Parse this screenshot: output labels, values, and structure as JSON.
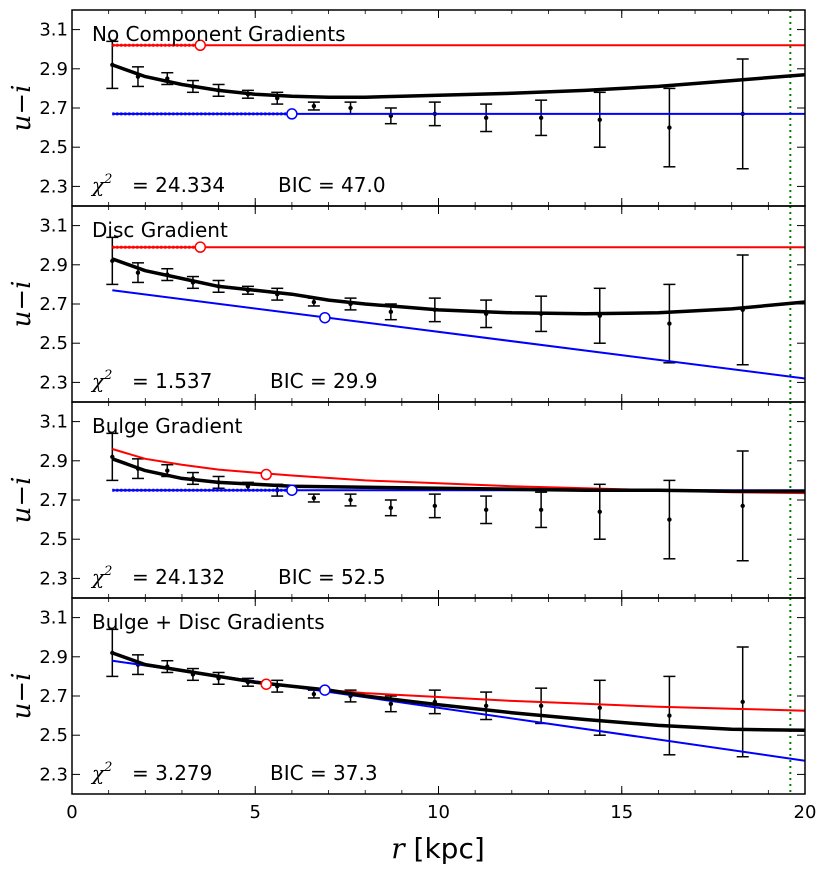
{
  "chart_data": {
    "type": "line",
    "xlabel": "r [kpc]",
    "xlabel_var": "r",
    "xlabel_unit": "[kpc]",
    "ylabel": "u−i",
    "xlim": [
      0,
      20
    ],
    "ylim": [
      2.2,
      3.2
    ],
    "xticks": [
      "0",
      "5",
      "10",
      "15",
      "20"
    ],
    "yticks": [
      "2.3",
      "2.5",
      "2.7",
      "2.9",
      "3.1"
    ],
    "vline_x": 19.6,
    "colors": {
      "bulge": "#ff0000",
      "disc": "#0000ff",
      "total": "#000000",
      "data": "#000000",
      "vline": "#008000"
    },
    "observations": {
      "r": [
        1.1,
        1.8,
        2.6,
        3.3,
        4.0,
        4.8,
        5.6,
        6.6,
        7.6,
        8.7,
        9.9,
        11.3,
        12.8,
        14.4,
        16.3,
        18.3
      ],
      "color": [
        2.92,
        2.86,
        2.85,
        2.81,
        2.79,
        2.77,
        2.75,
        2.71,
        2.7,
        2.66,
        2.67,
        2.65,
        2.65,
        2.64,
        2.6,
        2.67
      ],
      "err": [
        0.12,
        0.05,
        0.03,
        0.03,
        0.03,
        0.02,
        0.03,
        0.02,
        0.03,
        0.04,
        0.06,
        0.07,
        0.09,
        0.14,
        0.2,
        0.28
      ]
    },
    "panels": [
      {
        "title": "No Component Gradients",
        "chi2": "= 24.334",
        "bic": "BIC = 47.0",
        "bulge": {
          "x": [
            1.1,
            20
          ],
          "y": [
            3.02,
            3.02
          ]
        },
        "bulge_dotted": {
          "x": [
            1.1,
            3.5
          ],
          "y": [
            3.02,
            3.02
          ]
        },
        "bulge_marker": {
          "x": 3.5,
          "y": 3.02
        },
        "disc": {
          "x": [
            1.1,
            20
          ],
          "y": [
            2.67,
            2.67
          ]
        },
        "disc_dotted": {
          "x": [
            1.1,
            6.0
          ],
          "y": [
            2.67,
            2.67
          ]
        },
        "disc_marker": {
          "x": 6.0,
          "y": 2.67
        },
        "total": {
          "x": [
            1.1,
            2,
            3,
            4,
            5,
            6,
            7,
            8,
            9,
            10,
            12,
            14,
            16,
            18,
            20
          ],
          "y": [
            2.92,
            2.86,
            2.82,
            2.79,
            2.77,
            2.76,
            2.755,
            2.755,
            2.76,
            2.765,
            2.775,
            2.79,
            2.81,
            2.84,
            2.87
          ]
        }
      },
      {
        "title": "Disc Gradient",
        "chi2": "= 1.537",
        "bic": "BIC = 29.9",
        "bulge": {
          "x": [
            1.1,
            20
          ],
          "y": [
            2.99,
            2.99
          ]
        },
        "bulge_dotted": {
          "x": [
            1.1,
            3.5
          ],
          "y": [
            2.99,
            2.99
          ]
        },
        "bulge_marker": {
          "x": 3.5,
          "y": 2.99
        },
        "disc": {
          "x": [
            1.1,
            20
          ],
          "y": [
            2.77,
            2.32
          ]
        },
        "disc_marker": {
          "x": 6.9,
          "y": 2.63
        },
        "total": {
          "x": [
            1.1,
            2,
            3,
            4,
            5,
            6,
            7,
            8,
            9,
            10,
            12,
            14,
            16,
            18,
            20
          ],
          "y": [
            2.93,
            2.87,
            2.83,
            2.79,
            2.77,
            2.75,
            2.72,
            2.7,
            2.685,
            2.67,
            2.655,
            2.65,
            2.655,
            2.675,
            2.71
          ]
        }
      },
      {
        "title": "Bulge Gradient",
        "chi2": "= 24.132",
        "bic": "BIC = 52.5",
        "bulge": {
          "x": [
            1.1,
            2,
            3,
            4,
            5,
            6,
            8,
            10,
            12,
            14,
            16,
            18,
            20
          ],
          "y": [
            2.96,
            2.91,
            2.88,
            2.855,
            2.84,
            2.825,
            2.8,
            2.785,
            2.77,
            2.76,
            2.75,
            2.74,
            2.735
          ]
        },
        "bulge_marker": {
          "x": 5.3,
          "y": 2.83
        },
        "disc": {
          "x": [
            1.1,
            20
          ],
          "y": [
            2.75,
            2.75
          ]
        },
        "disc_dotted": {
          "x": [
            1.1,
            6.0
          ],
          "y": [
            2.75,
            2.75
          ]
        },
        "disc_marker": {
          "x": 6.0,
          "y": 2.75
        },
        "total": {
          "x": [
            1.1,
            2,
            3,
            4,
            5,
            6,
            8,
            10,
            12,
            14,
            16,
            18,
            20
          ],
          "y": [
            2.91,
            2.85,
            2.81,
            2.79,
            2.78,
            2.77,
            2.765,
            2.76,
            2.755,
            2.75,
            2.75,
            2.745,
            2.745
          ]
        }
      },
      {
        "title": "Bulge + Disc Gradients",
        "chi2": "= 3.279",
        "bic": "BIC = 37.3",
        "bulge": {
          "x": [
            1.1,
            2,
            3,
            4,
            5,
            6,
            7,
            8,
            10,
            12,
            14,
            16,
            18,
            20
          ],
          "y": [
            2.92,
            2.86,
            2.83,
            2.8,
            2.77,
            2.75,
            2.73,
            2.715,
            2.695,
            2.675,
            2.66,
            2.645,
            2.635,
            2.625
          ]
        },
        "bulge_marker": {
          "x": 5.3,
          "y": 2.76
        },
        "disc": {
          "x": [
            1.1,
            20
          ],
          "y": [
            2.88,
            2.37
          ]
        },
        "disc_marker": {
          "x": 6.9,
          "y": 2.73
        },
        "total": {
          "x": [
            1.1,
            2,
            3,
            4,
            5,
            6,
            7,
            8,
            10,
            12,
            14,
            16,
            18,
            20
          ],
          "y": [
            2.92,
            2.86,
            2.83,
            2.8,
            2.77,
            2.75,
            2.73,
            2.7,
            2.655,
            2.615,
            2.58,
            2.55,
            2.53,
            2.525
          ]
        }
      }
    ]
  }
}
